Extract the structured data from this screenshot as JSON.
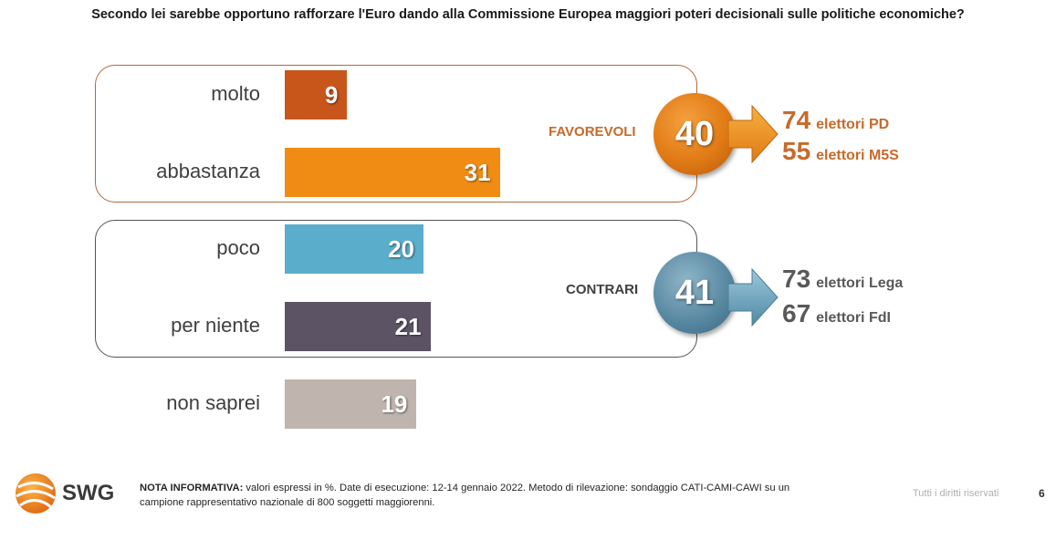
{
  "title": "Secondo lei sarebbe opportuno rafforzare l'Euro dando alla Commissione Europea maggiori poteri decisionali sulle politiche economiche?",
  "chart_data": {
    "type": "bar",
    "orientation": "horizontal",
    "categories": [
      "molto",
      "abbastanza",
      "poco",
      "per niente",
      "non saprei"
    ],
    "values": [
      9,
      31,
      20,
      21,
      19
    ],
    "colors": [
      "#c8561b",
      "#f08c14",
      "#5aaecb",
      "#5c5465",
      "#c0b5ae"
    ],
    "groups": [
      {
        "name": "FAVOREVOLI",
        "total": "40",
        "color": "#c86a2a",
        "circle_color": "#e07a15",
        "voters": [
          {
            "value": "74",
            "label": "elettori PD"
          },
          {
            "value": "55",
            "label": "elettori M5S"
          }
        ]
      },
      {
        "name": "CONTRARI",
        "total": "41",
        "color": "#404040",
        "circle_color": "#5a8aa3",
        "voters": [
          {
            "value": "73",
            "label": "elettori Lega"
          },
          {
            "value": "67",
            "label": "elettori FdI"
          }
        ]
      }
    ]
  },
  "footer": {
    "logo_text": "SWG",
    "note_bold": "NOTA INFORMATIVA:",
    "note_text": " valori espressi in %. Date di esecuzione: 12-14 gennaio 2022. Metodo di rilevazione: sondaggio CATI-CAMI-CAWI su un campione rappresentativo nazionale di 800 soggetti maggiorenni.",
    "rights": "Tutti i diritti riservati",
    "page": "6"
  }
}
